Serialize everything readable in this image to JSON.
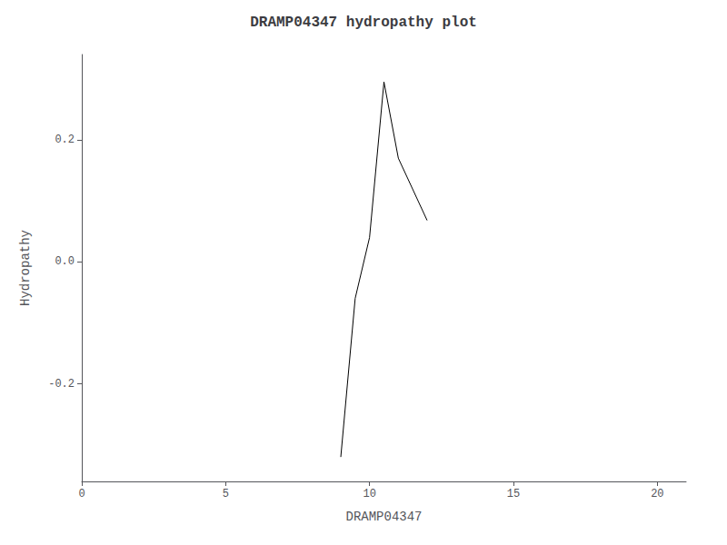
{
  "chart_data": {
    "type": "line",
    "title": "DRAMP04347 hydropathy plot",
    "xlabel": "DRAMP04347",
    "ylabel": "Hydropathy",
    "x": [
      9.0,
      9.5,
      10.0,
      10.5,
      11.0,
      12.0
    ],
    "values": [
      -0.32,
      -0.06,
      0.04,
      0.295,
      0.17,
      0.068
    ],
    "color": "#000000",
    "xlim": [
      0,
      21
    ],
    "xticks": [
      0,
      5,
      10,
      15,
      20
    ],
    "ylim": [
      -0.36,
      0.34
    ],
    "yticks": [
      -0.2,
      {
        "value": 0.0,
        "label": "0.0"
      },
      0.2
    ],
    "grid": false
  }
}
